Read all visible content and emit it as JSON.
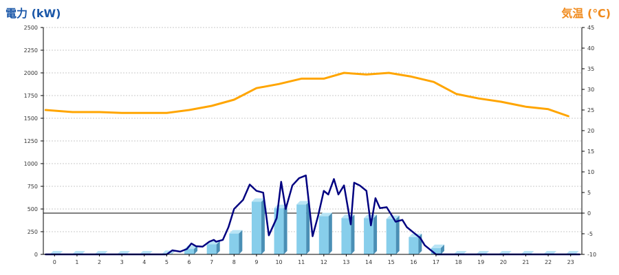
{
  "chart_data": {
    "type": "bar+line",
    "title": "",
    "left_axis": {
      "label": "電力 (kW)",
      "color": "#1a57a8",
      "min": 0,
      "max": 2500,
      "step": 250
    },
    "right_axis": {
      "label": "気温 (℃)",
      "color": "#f08a1c",
      "min": -10,
      "max": 45,
      "step": 5,
      "zero_line": true
    },
    "x_axis": {
      "categories": [
        "0",
        "1",
        "2",
        "3",
        "4",
        "5",
        "6",
        "7",
        "8",
        "9",
        "10",
        "11",
        "12",
        "13",
        "14",
        "15",
        "16",
        "17",
        "18",
        "19",
        "20",
        "21",
        "22",
        "23"
      ]
    },
    "grid": true,
    "legend": "none",
    "series": [
      {
        "type": "bar",
        "axis": "left",
        "color": "#87ceeb",
        "values": [
          0,
          0,
          0,
          0,
          0,
          5,
          60,
          110,
          230,
          580,
          510,
          550,
          420,
          400,
          400,
          390,
          190,
          70,
          0,
          0,
          0,
          0,
          0,
          0
        ]
      },
      {
        "type": "line",
        "axis": "left",
        "color": "#000080",
        "points": [
          [
            -0.4,
            0
          ],
          [
            0,
            0
          ],
          [
            1,
            0
          ],
          [
            2,
            0
          ],
          [
            3,
            0
          ],
          [
            4,
            0
          ],
          [
            5,
            0
          ],
          [
            5.25,
            45
          ],
          [
            5.6,
            30
          ],
          [
            5.9,
            60
          ],
          [
            6.1,
            120
          ],
          [
            6.3,
            90
          ],
          [
            6.6,
            85
          ],
          [
            6.9,
            140
          ],
          [
            7.1,
            160
          ],
          [
            7.2,
            140
          ],
          [
            7.5,
            160
          ],
          [
            7.75,
            300
          ],
          [
            8,
            500
          ],
          [
            8.4,
            600
          ],
          [
            8.7,
            770
          ],
          [
            9,
            700
          ],
          [
            9.3,
            680
          ],
          [
            9.55,
            210
          ],
          [
            9.9,
            400
          ],
          [
            10.1,
            800
          ],
          [
            10.3,
            500
          ],
          [
            10.6,
            760
          ],
          [
            10.9,
            840
          ],
          [
            11.2,
            870
          ],
          [
            11.5,
            200
          ],
          [
            11.75,
            430
          ],
          [
            12,
            700
          ],
          [
            12.2,
            660
          ],
          [
            12.45,
            830
          ],
          [
            12.65,
            660
          ],
          [
            12.9,
            760
          ],
          [
            13.2,
            330
          ],
          [
            13.35,
            790
          ],
          [
            13.6,
            760
          ],
          [
            13.9,
            700
          ],
          [
            14.1,
            320
          ],
          [
            14.3,
            620
          ],
          [
            14.5,
            510
          ],
          [
            14.8,
            520
          ],
          [
            15,
            440
          ],
          [
            15.2,
            360
          ],
          [
            15.5,
            380
          ],
          [
            15.7,
            300
          ],
          [
            16.3,
            180
          ],
          [
            16.5,
            100
          ],
          [
            17,
            0
          ],
          [
            18,
            0
          ],
          [
            19,
            0
          ],
          [
            20,
            0
          ],
          [
            21,
            0
          ],
          [
            22,
            0
          ],
          [
            23,
            0
          ],
          [
            23.4,
            0
          ]
        ]
      },
      {
        "type": "line",
        "axis": "right",
        "color": "#ffa500",
        "points": [
          [
            -0.4,
            25
          ],
          [
            0.8,
            24.5
          ],
          [
            2,
            24.5
          ],
          [
            3,
            24.3
          ],
          [
            4,
            24.3
          ],
          [
            5,
            24.3
          ],
          [
            6,
            25
          ],
          [
            7,
            26
          ],
          [
            8,
            27.5
          ],
          [
            9,
            30.3
          ],
          [
            10,
            31.3
          ],
          [
            11,
            32.6
          ],
          [
            12,
            32.6
          ],
          [
            12.9,
            34
          ],
          [
            13.9,
            33.6
          ],
          [
            14.9,
            34
          ],
          [
            15.9,
            33.1
          ],
          [
            16.9,
            31.8
          ],
          [
            17.9,
            28.9
          ],
          [
            18.9,
            27.8
          ],
          [
            19.9,
            27
          ],
          [
            21,
            25.8
          ],
          [
            22,
            25.2
          ],
          [
            22.9,
            23.5
          ]
        ]
      }
    ]
  }
}
